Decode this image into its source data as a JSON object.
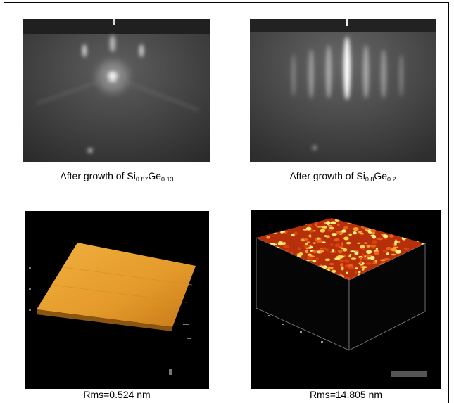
{
  "panels": [
    {
      "caption": [
        "After growth of Si",
        "0.87",
        "Ge",
        "0.13"
      ]
    },
    {
      "caption": [
        "After growth of Si",
        "0.8",
        "Ge",
        "0.2"
      ]
    },
    {
      "caption": [
        "Rms=0.524 nm"
      ]
    },
    {
      "caption": [
        "Rms=14.805 nm"
      ]
    }
  ]
}
